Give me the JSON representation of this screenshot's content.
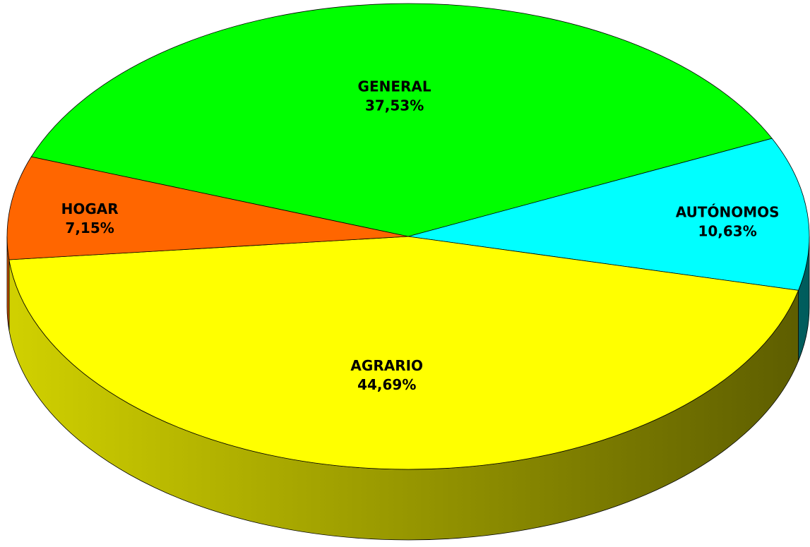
{
  "chart_data": {
    "type": "pie",
    "categories": [
      "GENERAL",
      "AUTÓNOMOS",
      "AGRARIO",
      "HOGAR"
    ],
    "values": [
      37.53,
      10.63,
      44.69,
      7.15
    ],
    "value_labels": [
      "37,53%",
      "10,63%",
      "44,69%",
      "7,15%"
    ],
    "colors": [
      "#00ff00",
      "#00ffff",
      "#ffff00",
      "#ff6600"
    ]
  }
}
